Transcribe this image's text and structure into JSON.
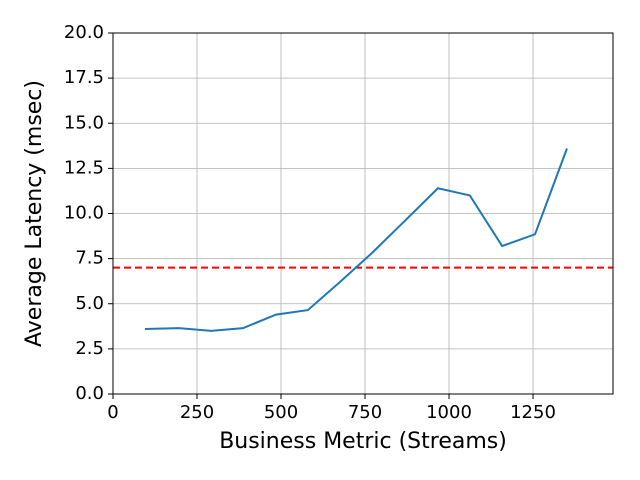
{
  "chart_data": {
    "type": "line",
    "x_label": "Business Metric (Streams)",
    "y_label": "Average Latency (msec)",
    "x": [
      95,
      196,
      292,
      387,
      485,
      580,
      675,
      770,
      869,
      967,
      1062,
      1158,
      1256,
      1351
    ],
    "series": [
      {
        "color": "#1f77b4",
        "values": [
          3.6,
          3.65,
          3.5,
          3.65,
          4.4,
          4.65,
          6.2,
          7.8,
          9.6,
          11.4,
          11.0,
          8.2,
          8.85,
          13.6
        ]
      }
    ],
    "threshold": {
      "value": 7.0,
      "color": "#ff0000",
      "dash": true
    },
    "xlim": [
      0,
      1488
    ],
    "ylim": [
      0,
      20
    ],
    "xticks": [
      0,
      250,
      500,
      750,
      1000,
      1250
    ],
    "yticks": [
      {
        "value": 0,
        "label": "0.0"
      },
      {
        "value": 2.5,
        "label": "2.5"
      },
      {
        "value": 5,
        "label": "5.0"
      },
      {
        "value": 7.5,
        "label": "7.5"
      },
      {
        "value": 10,
        "label": "10.0"
      },
      {
        "value": 12.5,
        "label": "12.5"
      },
      {
        "value": 15,
        "label": "15.0"
      },
      {
        "value": 17.5,
        "label": "17.5"
      },
      {
        "value": 20,
        "label": "20.0"
      }
    ],
    "grid": true
  }
}
